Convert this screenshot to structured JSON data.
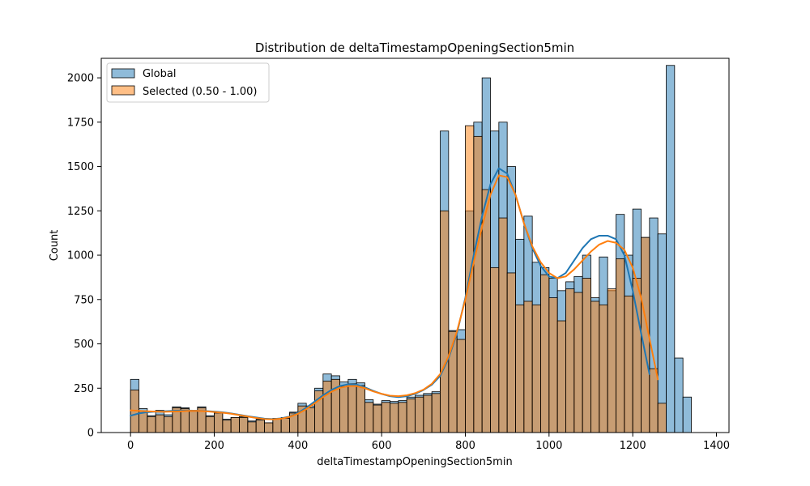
{
  "chart_data": {
    "type": "bar",
    "title": "Distribution de deltaTimestampOpeningSection5min",
    "xlabel": "deltaTimestampOpeningSection5min",
    "ylabel": "Count",
    "xlim": [
      -70,
      1430
    ],
    "ylim": [
      0,
      2110
    ],
    "xticks": [
      0,
      200,
      400,
      600,
      800,
      1000,
      1200,
      1400
    ],
    "yticks": [
      0,
      250,
      500,
      750,
      1000,
      1250,
      1500,
      1750,
      2000
    ],
    "grid": false,
    "legend_position": "upper left",
    "bin_start": 0,
    "bin_width": 20,
    "series": [
      {
        "name": "Global",
        "color": "#1f77b4",
        "bar_alpha": 0.5,
        "values": [
          300,
          135,
          95,
          125,
          100,
          145,
          140,
          125,
          145,
          95,
          115,
          75,
          85,
          90,
          65,
          75,
          55,
          80,
          85,
          115,
          165,
          150,
          250,
          330,
          320,
          285,
          300,
          280,
          185,
          160,
          180,
          175,
          180,
          200,
          210,
          220,
          230,
          1700,
          575,
          580,
          1250,
          1750,
          2000,
          1700,
          1750,
          1500,
          1090,
          1220,
          960,
          930,
          870,
          800,
          850,
          880,
          1000,
          760,
          990,
          800,
          1230,
          1000,
          1260,
          1100,
          1210,
          1120,
          2070,
          420,
          200
        ],
        "kde_x": [
          0,
          20,
          40,
          60,
          80,
          100,
          120,
          140,
          160,
          180,
          200,
          220,
          240,
          260,
          280,
          300,
          320,
          340,
          360,
          380,
          400,
          420,
          440,
          460,
          480,
          500,
          520,
          540,
          560,
          580,
          600,
          620,
          640,
          660,
          680,
          700,
          720,
          740,
          760,
          780,
          800,
          820,
          840,
          860,
          880,
          900,
          920,
          940,
          960,
          980,
          1000,
          1020,
          1040,
          1060,
          1080,
          1100,
          1120,
          1140,
          1160,
          1180,
          1200,
          1220,
          1240,
          1260,
          1280,
          1300,
          1320,
          1340,
          1360
        ],
        "kde_y": [
          95,
          108,
          115,
          118,
          120,
          122,
          124,
          124,
          123,
          121,
          118,
          114,
          108,
          100,
          92,
          85,
          78,
          76,
          80,
          90,
          110,
          140,
          175,
          210,
          240,
          262,
          272,
          270,
          255,
          235,
          218,
          205,
          200,
          205,
          218,
          240,
          270,
          320,
          420,
          560,
          760,
          1000,
          1220,
          1400,
          1490,
          1460,
          1340,
          1180,
          1040,
          940,
          880,
          870,
          900,
          970,
          1040,
          1090,
          1110,
          1110,
          1090,
          1000,
          800,
          560,
          330
        ]
      },
      {
        "name": "Selected (0.50 - 1.00)",
        "color": "#ff7f0e",
        "bar_alpha": 0.5,
        "values": [
          240,
          120,
          90,
          100,
          90,
          140,
          135,
          120,
          140,
          90,
          110,
          70,
          85,
          85,
          60,
          70,
          55,
          75,
          80,
          110,
          150,
          140,
          235,
          290,
          300,
          260,
          275,
          265,
          170,
          155,
          170,
          165,
          170,
          190,
          200,
          210,
          220,
          1250,
          570,
          525,
          1730,
          1670,
          1370,
          930,
          1210,
          900,
          720,
          740,
          720,
          890,
          760,
          630,
          810,
          790,
          870,
          740,
          720,
          810,
          980,
          770,
          870,
          1100,
          360,
          165
        ],
        "kde_x": [
          0,
          20,
          40,
          60,
          80,
          100,
          120,
          140,
          160,
          180,
          200,
          220,
          240,
          260,
          280,
          300,
          320,
          340,
          360,
          380,
          400,
          420,
          440,
          460,
          480,
          500,
          520,
          540,
          560,
          580,
          600,
          620,
          640,
          660,
          680,
          700,
          720,
          740,
          760,
          780,
          800,
          820,
          840,
          860,
          880,
          900,
          920,
          940,
          960,
          980,
          1000,
          1020,
          1040,
          1060,
          1080,
          1100,
          1120,
          1140,
          1160,
          1180,
          1200,
          1220,
          1240,
          1260,
          1280,
          1300,
          1320,
          1340,
          1360
        ],
        "kde_y": [
          125,
          122,
          120,
          118,
          117,
          118,
          120,
          122,
          122,
          120,
          116,
          112,
          106,
          98,
          90,
          82,
          76,
          74,
          78,
          88,
          106,
          132,
          165,
          200,
          230,
          252,
          262,
          262,
          250,
          232,
          218,
          208,
          205,
          210,
          222,
          242,
          275,
          330,
          430,
          570,
          750,
          960,
          1160,
          1340,
          1450,
          1440,
          1340,
          1180,
          1050,
          960,
          900,
          870,
          880,
          920,
          970,
          1020,
          1060,
          1080,
          1070,
          1030,
          930,
          760,
          530,
          300
        ]
      }
    ]
  }
}
